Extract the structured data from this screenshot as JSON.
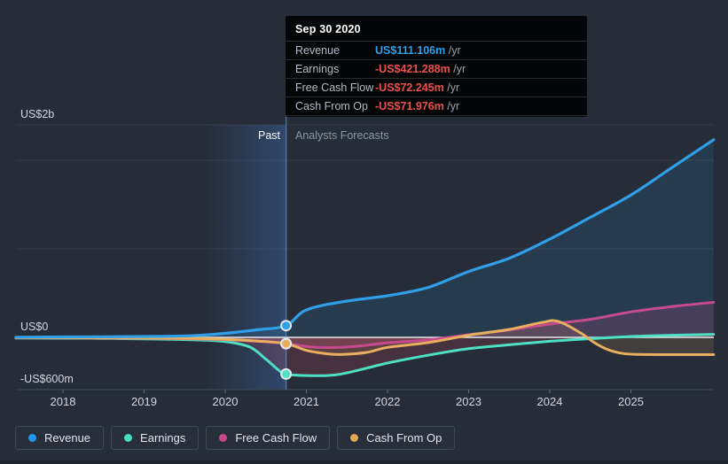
{
  "panel": {
    "background": "#262c38"
  },
  "tooltip": {
    "title": "Sep 30 2020",
    "rows": [
      {
        "label": "Revenue",
        "value": "US$111.106m",
        "suffix": " /yr",
        "value_color": "#2f9fe8"
      },
      {
        "label": "Earnings",
        "value": "-US$421.288m",
        "suffix": " /yr",
        "value_color": "#e8514d"
      },
      {
        "label": "Free Cash Flow",
        "value": "-US$72.245m",
        "suffix": " /yr",
        "value_color": "#e8514d"
      },
      {
        "label": "Cash From Op",
        "value": "-US$71.976m",
        "suffix": " /yr",
        "value_color": "#e8514d"
      }
    ]
  },
  "annotations": {
    "past_label": "Past",
    "forecast_label": "Analysts Forecasts"
  },
  "y_axis": {
    "labels": [
      {
        "text": "US$2b"
      },
      {
        "text": "US$0"
      },
      {
        "text": "-US$600m"
      }
    ]
  },
  "x_axis": {
    "years": [
      "2018",
      "2019",
      "2020",
      "2021",
      "2022",
      "2023",
      "2024",
      "2025"
    ]
  },
  "legend": {
    "items": [
      {
        "label": "Revenue",
        "color": "#2196f3"
      },
      {
        "label": "Earnings",
        "color": "#45dec0"
      },
      {
        "label": "Free Cash Flow",
        "color": "#c9488c"
      },
      {
        "label": "Cash From Op",
        "color": "#e3a94f"
      }
    ]
  },
  "chart_data": {
    "type": "line",
    "title": "Past and forecast financials (Revenue, Earnings, Free Cash Flow, Cash From Op)",
    "x_unit": "year",
    "x_range": [
      2017.42,
      2026.02
    ],
    "y_unit": "US$ millions",
    "y_axis_marks": {
      "top_label": "US$2b",
      "top_value_m": 2000,
      "zero_label": "US$0",
      "bottom_label": "-US$600m",
      "bottom_value_m": -600
    },
    "grid": "horizontal only",
    "legend_position": "bottom",
    "divider_year": 2020.75,
    "marker_date": "Sep 30 2020",
    "marker_values_m": {
      "Revenue": 111.106,
      "Earnings": -421.288,
      "Free Cash Flow": -72.245,
      "Cash From Op": -71.976
    },
    "series": [
      {
        "name": "Revenue",
        "color": "#2f9fe8",
        "fill": "rgba(47,159,232,0.13)",
        "points": [
          [
            2017.42,
            2
          ],
          [
            2018,
            4
          ],
          [
            2019,
            8
          ],
          [
            2019.6,
            16
          ],
          [
            2020,
            38
          ],
          [
            2020.4,
            72
          ],
          [
            2020.75,
            111.106
          ],
          [
            2021,
            258
          ],
          [
            2021.5,
            342
          ],
          [
            2022,
            392
          ],
          [
            2022.5,
            470
          ],
          [
            2023,
            620
          ],
          [
            2023.5,
            745
          ],
          [
            2024,
            925
          ],
          [
            2024.5,
            1130
          ],
          [
            2025,
            1340
          ],
          [
            2025.5,
            1595
          ],
          [
            2026.02,
            1860
          ]
        ]
      },
      {
        "name": "Earnings",
        "color": "#4fe0c4",
        "fill": "rgba(199,68,96,0.20)",
        "points": [
          [
            2017.42,
            -8
          ],
          [
            2018,
            -10
          ],
          [
            2018.5,
            -12
          ],
          [
            2019,
            -18
          ],
          [
            2019.6,
            -28
          ],
          [
            2020,
            -48
          ],
          [
            2020.3,
            -110
          ],
          [
            2020.5,
            -250
          ],
          [
            2020.65,
            -370
          ],
          [
            2020.75,
            -421.288
          ],
          [
            2021,
            -438
          ],
          [
            2021.4,
            -425
          ],
          [
            2022,
            -295
          ],
          [
            2022.5,
            -205
          ],
          [
            2023,
            -130
          ],
          [
            2023.5,
            -85
          ],
          [
            2024,
            -45
          ],
          [
            2024.5,
            -15
          ],
          [
            2025,
            8
          ],
          [
            2025.5,
            20
          ],
          [
            2026.02,
            28
          ]
        ]
      },
      {
        "name": "Free Cash Flow",
        "color": "#c64a8e",
        "fill": "rgba(198,74,142,0.20)",
        "points": [
          [
            2017.42,
            -5
          ],
          [
            2018,
            -6
          ],
          [
            2019,
            -10
          ],
          [
            2019.6,
            -16
          ],
          [
            2020,
            -26
          ],
          [
            2020.4,
            -46
          ],
          [
            2020.75,
            -72.245
          ],
          [
            2021,
            -105
          ],
          [
            2021.25,
            -118
          ],
          [
            2021.6,
            -105
          ],
          [
            2022,
            -62
          ],
          [
            2022.5,
            -30
          ],
          [
            2023,
            25
          ],
          [
            2023.5,
            70
          ],
          [
            2024,
            125
          ],
          [
            2024.5,
            170
          ],
          [
            2025,
            240
          ],
          [
            2025.5,
            290
          ],
          [
            2026.02,
            330
          ]
        ]
      },
      {
        "name": "Cash From Op",
        "color": "#e8b05e",
        "fill": "rgba(232,176,94,0.14)",
        "points": [
          [
            2017.42,
            -4
          ],
          [
            2018,
            -5
          ],
          [
            2019,
            -8
          ],
          [
            2019.6,
            -13
          ],
          [
            2020,
            -22
          ],
          [
            2020.4,
            -42
          ],
          [
            2020.75,
            -71.976
          ],
          [
            2021,
            -150
          ],
          [
            2021.25,
            -188
          ],
          [
            2021.45,
            -196
          ],
          [
            2021.75,
            -172
          ],
          [
            2022,
            -115
          ],
          [
            2022.5,
            -60
          ],
          [
            2023,
            20
          ],
          [
            2023.5,
            75
          ],
          [
            2023.9,
            140
          ],
          [
            2024.1,
            152
          ],
          [
            2024.38,
            42
          ],
          [
            2024.55,
            -61
          ],
          [
            2024.72,
            -142
          ],
          [
            2024.9,
            -185
          ],
          [
            2025.1,
            -196
          ],
          [
            2025.5,
            -198
          ],
          [
            2026.02,
            -198
          ]
        ]
      }
    ]
  }
}
